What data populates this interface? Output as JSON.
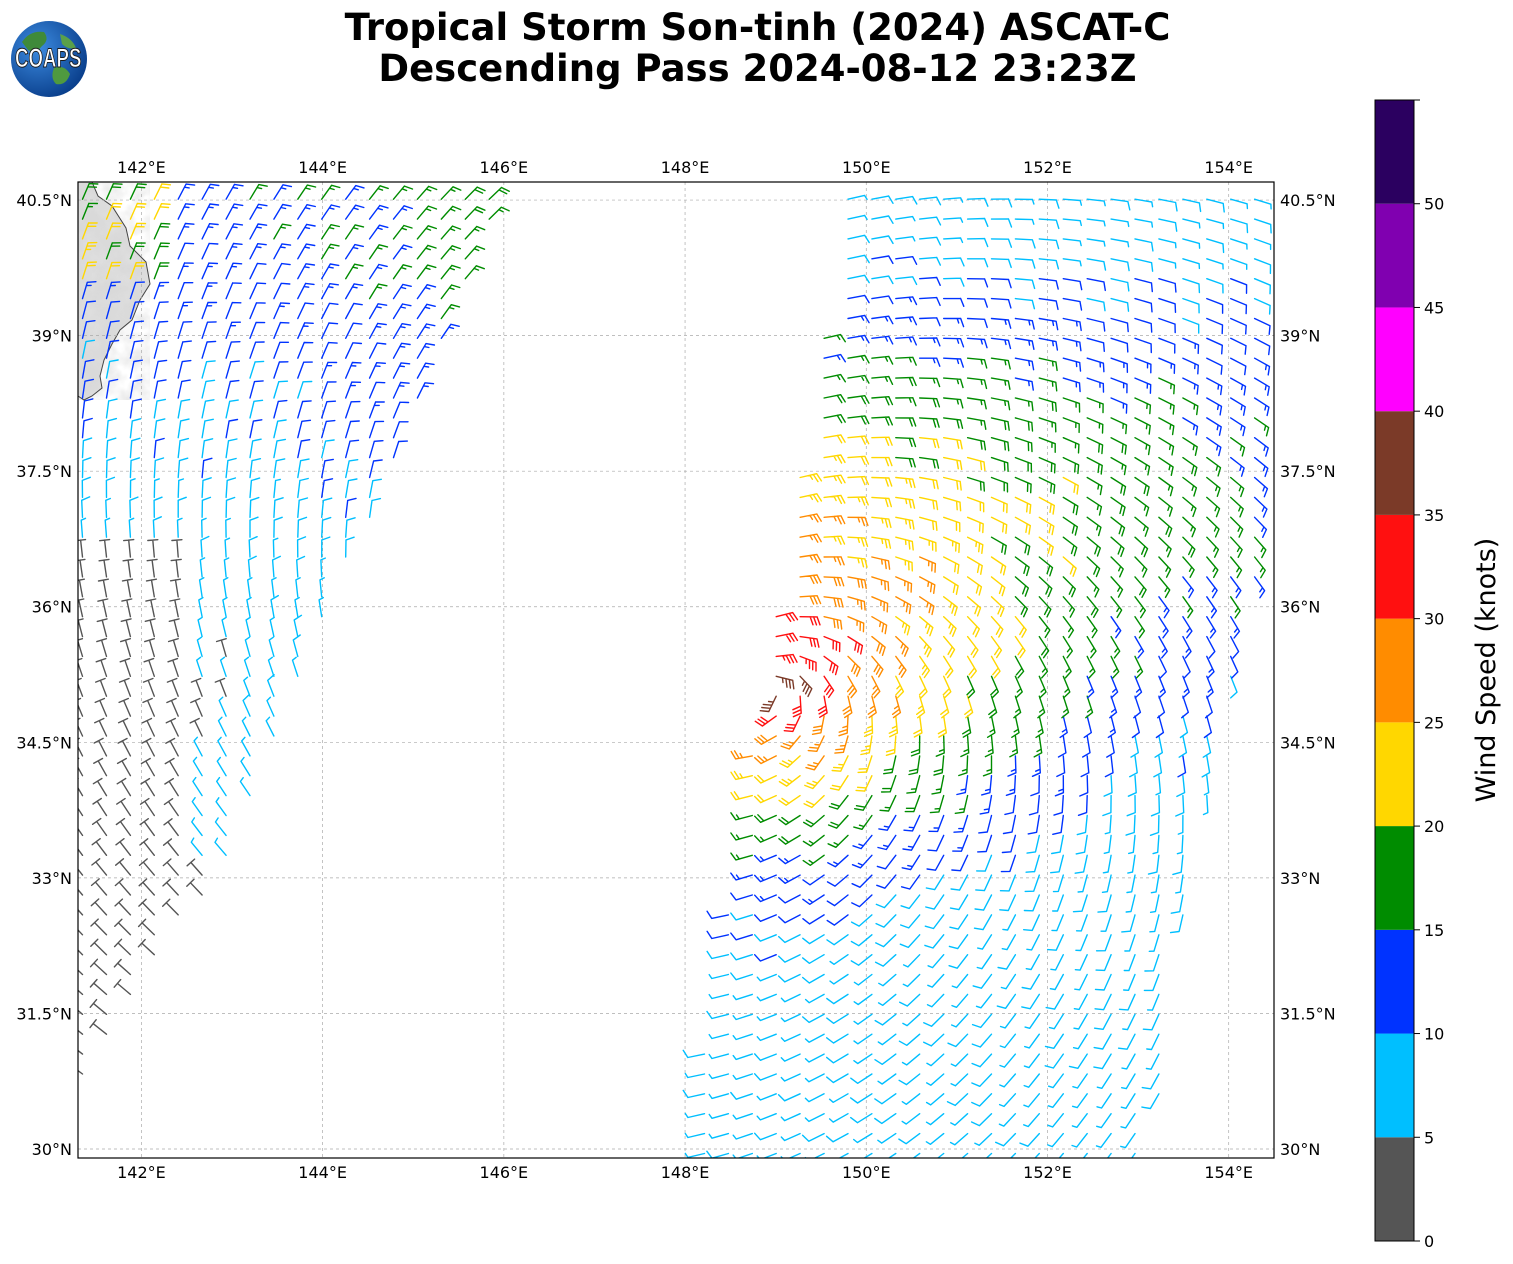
{
  "header": {
    "logo_text": "COAPS",
    "title_line1": "Tropical Storm Son-tinh (2024) ASCAT-C",
    "title_line2": "Descending Pass 2024-08-12 23:23Z"
  },
  "map": {
    "lon_range": [
      141.3,
      154.5
    ],
    "lat_range": [
      29.9,
      40.7
    ],
    "lon_ticks": [
      "142°E",
      "144°E",
      "146°E",
      "148°E",
      "150°E",
      "152°E",
      "154°E"
    ],
    "lon_tick_values": [
      142,
      144,
      146,
      148,
      150,
      152,
      154
    ],
    "lat_ticks": [
      "30°N",
      "31.5°N",
      "33°N",
      "34.5°N",
      "36°N",
      "37.5°N",
      "39°N",
      "40.5°N"
    ],
    "lat_tick_values": [
      30,
      31.5,
      33,
      34.5,
      36,
      37.5,
      39,
      40.5
    ],
    "gridlines": true,
    "land_color": "#c8c8c8",
    "coast_color": "#444444"
  },
  "colorbar": {
    "label": "Wind Speed (knots)",
    "tick_labels": [
      "0",
      "5",
      "10",
      "15",
      "20",
      "25",
      "30",
      "35",
      "40",
      "45",
      "50"
    ],
    "bins": [
      {
        "min": 0,
        "max": 5,
        "color": "#555555"
      },
      {
        "min": 5,
        "max": 10,
        "color": "#00bfff"
      },
      {
        "min": 10,
        "max": 15,
        "color": "#0033ff"
      },
      {
        "min": 15,
        "max": 20,
        "color": "#008c00"
      },
      {
        "min": 20,
        "max": 25,
        "color": "#ffd700"
      },
      {
        "min": 25,
        "max": 30,
        "color": "#ff8c00"
      },
      {
        "min": 30,
        "max": 35,
        "color": "#ff1010"
      },
      {
        "min": 35,
        "max": 40,
        "color": "#7b3a28"
      },
      {
        "min": 40,
        "max": 45,
        "color": "#ff00ff"
      },
      {
        "min": 45,
        "max": 50,
        "color": "#8000b0"
      },
      {
        "min": 50,
        "max": 55,
        "color": "#2b0060"
      }
    ]
  },
  "wind_field": {
    "storm_center": {
      "lon": 148.9,
      "lat": 35.1
    },
    "peak_speed_kt": 32,
    "west_swath_corners": [
      [
        141.3,
        40.55
      ],
      [
        146.0,
        40.55
      ],
      [
        143.0,
        33.3
      ],
      [
        141.3,
        30.65
      ]
    ],
    "east_swath_corners": [
      [
        149.8,
        40.55
      ],
      [
        154.5,
        40.55
      ],
      [
        154.5,
        37.3
      ],
      [
        153.3,
        31.6
      ],
      [
        153.2,
        29.9
      ],
      [
        148.0,
        29.9
      ],
      [
        148.9,
        35.3
      ]
    ]
  }
}
